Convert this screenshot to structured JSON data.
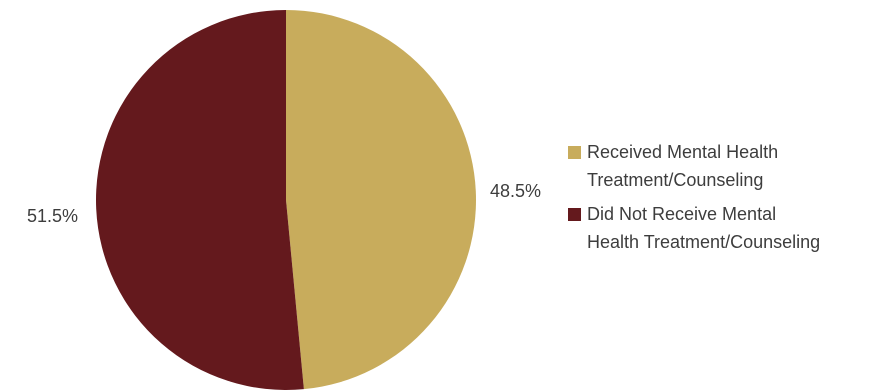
{
  "chart_data": {
    "type": "pie",
    "title": "",
    "start_angle_deg": 0,
    "direction": "clockwise",
    "legend_position": "right",
    "slices": [
      {
        "name": "Received Mental Health Treatment/Counseling",
        "legend_lines": [
          "Received Mental Health",
          "Treatment/Counseling"
        ],
        "value": 48.5,
        "label": "48.5%",
        "color": "#c8ac5c"
      },
      {
        "name": "Did Not Receive Mental Health Treatment/Counseling",
        "legend_lines": [
          "Did Not Receive Mental",
          "Health Treatment/Counseling"
        ],
        "value": 51.5,
        "label": "51.5%",
        "color": "#64191d"
      }
    ]
  }
}
